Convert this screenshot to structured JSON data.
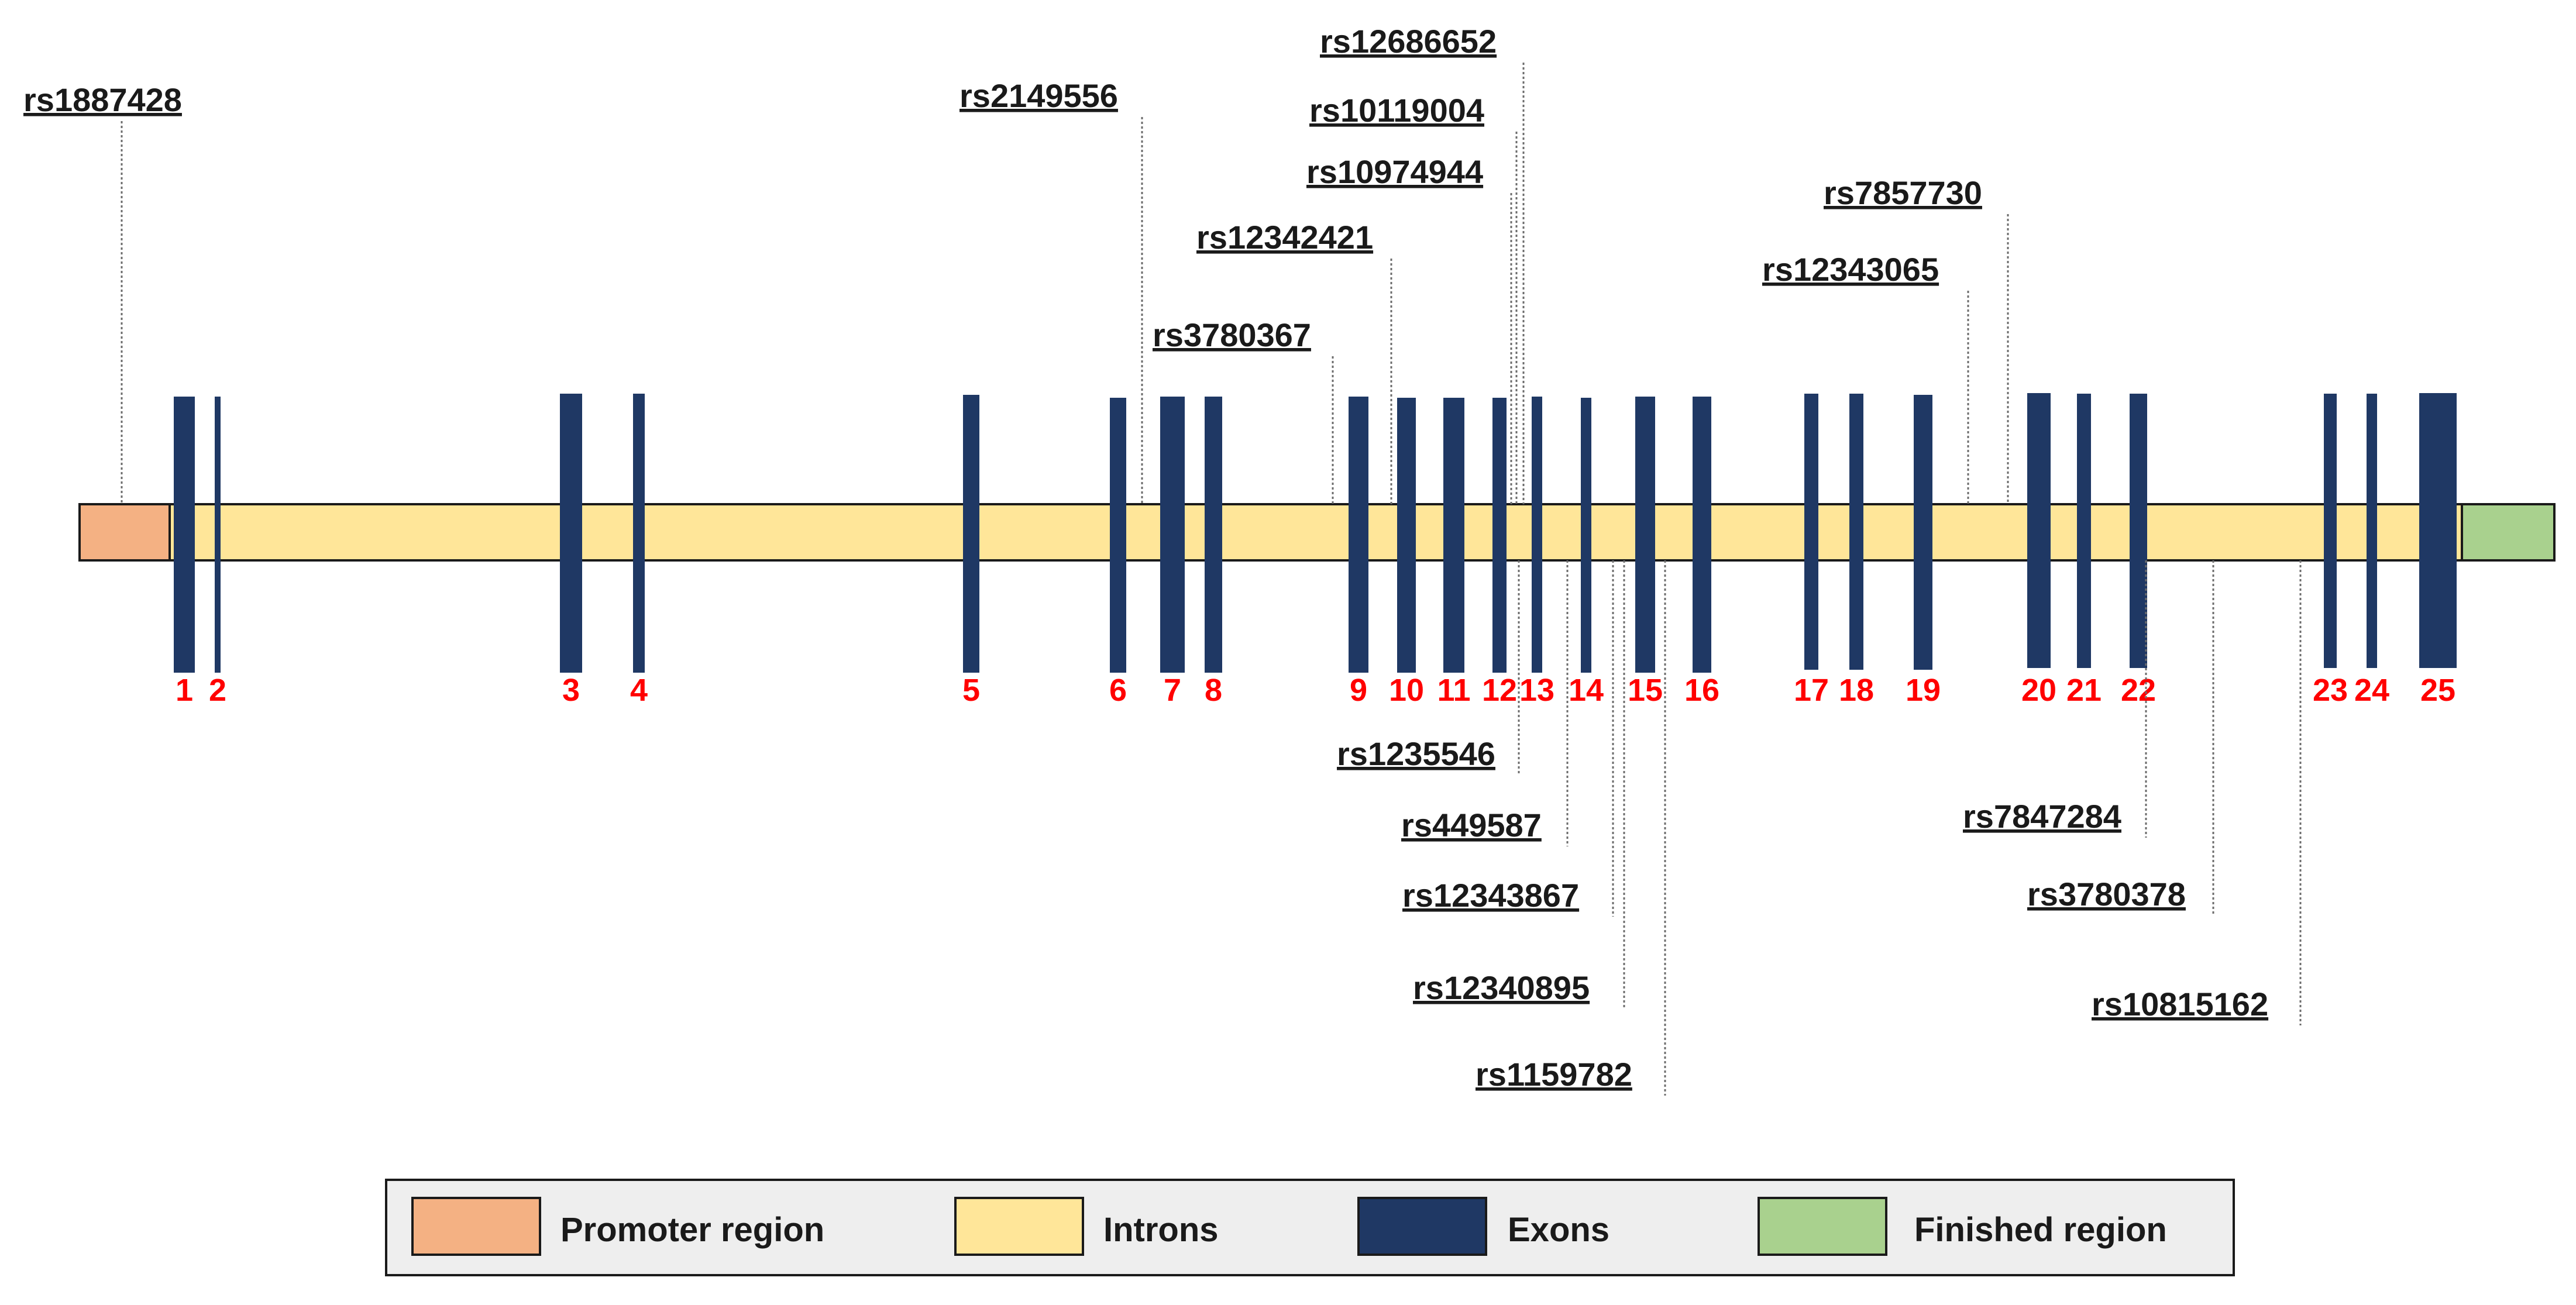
{
  "diagram": {
    "title": "",
    "colors": {
      "promoter": "#f4b183",
      "intron": "#ffe699",
      "exon": "#1f3864",
      "finished": "#a9d18e",
      "exon_number": "#ff0000",
      "outline": "#1a1a1a",
      "legend_bg": "#eeeeee"
    },
    "exons": [
      {
        "number": "1"
      },
      {
        "number": "2"
      },
      {
        "number": "3"
      },
      {
        "number": "4"
      },
      {
        "number": "5"
      },
      {
        "number": "6"
      },
      {
        "number": "7"
      },
      {
        "number": "8"
      },
      {
        "number": "9"
      },
      {
        "number": "10"
      },
      {
        "number": "11"
      },
      {
        "number": "12"
      },
      {
        "number": "13"
      },
      {
        "number": "14"
      },
      {
        "number": "15"
      },
      {
        "number": "16"
      },
      {
        "number": "17"
      },
      {
        "number": "18"
      },
      {
        "number": "19"
      },
      {
        "number": "20"
      },
      {
        "number": "21"
      },
      {
        "number": "22"
      },
      {
        "number": "23"
      },
      {
        "number": "24"
      },
      {
        "number": "25"
      }
    ],
    "snps_above": [
      {
        "id": "rs1887428"
      },
      {
        "id": "rs2149556"
      },
      {
        "id": "rs3780367"
      },
      {
        "id": "rs12342421"
      },
      {
        "id": "rs10974944"
      },
      {
        "id": "rs10119004"
      },
      {
        "id": "rs12686652"
      },
      {
        "id": "rs12343065"
      },
      {
        "id": "rs7857730"
      }
    ],
    "snps_below": [
      {
        "id": "rs1235546"
      },
      {
        "id": "rs449587"
      },
      {
        "id": "rs12343867"
      },
      {
        "id": "rs12340895"
      },
      {
        "id": "rs1159782"
      },
      {
        "id": "rs7847284"
      },
      {
        "id": "rs3780378"
      },
      {
        "id": "rs10815162"
      }
    ],
    "legend": [
      {
        "label": "Promoter region",
        "color": "#f4b183"
      },
      {
        "label": "Introns",
        "color": "#ffe699"
      },
      {
        "label": "Exons",
        "color": "#1f3864"
      },
      {
        "label": "Finished region",
        "color": "#a9d18e"
      }
    ]
  }
}
